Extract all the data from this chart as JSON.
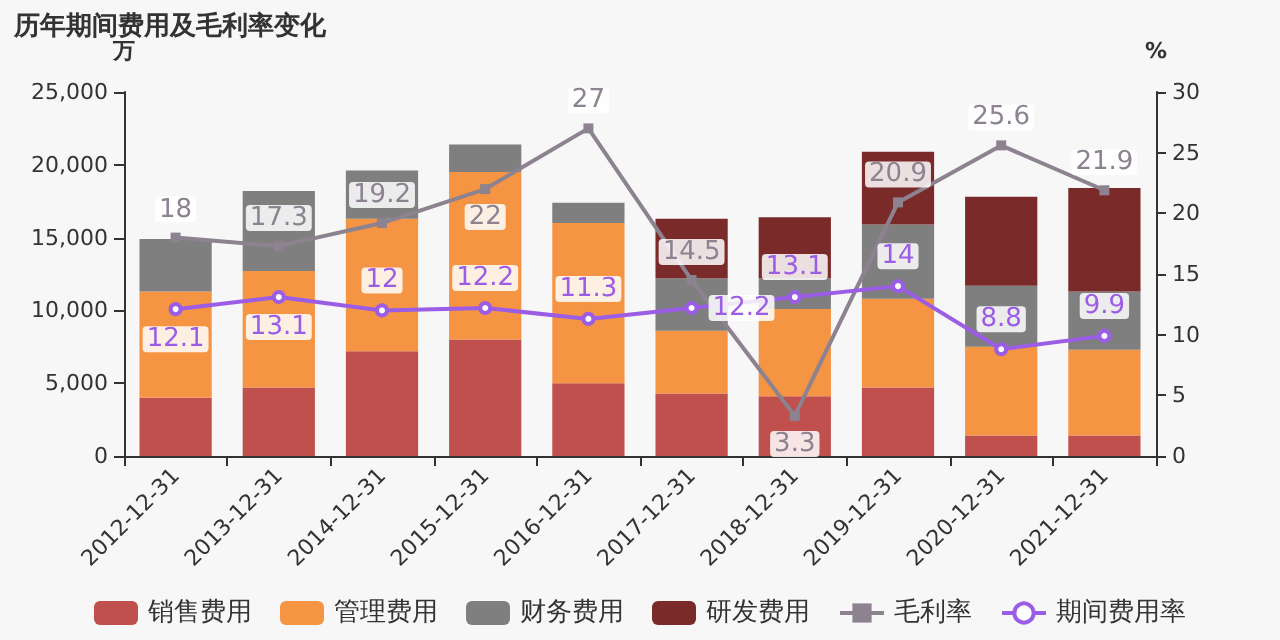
{
  "chart_data": {
    "type": "bar",
    "title": "历年期间费用及毛利率变化",
    "ylabel": "万",
    "y2label": "%",
    "categories": [
      "2012-12-31",
      "2013-12-31",
      "2014-12-31",
      "2015-12-31",
      "2016-12-31",
      "2017-12-31",
      "2018-12-31",
      "2019-12-31",
      "2020-12-31",
      "2021-12-31"
    ],
    "stacked": true,
    "legend": "bottom",
    "grid": false,
    "ylim": [
      0,
      25000
    ],
    "yticks": [
      0,
      {
        "value": 5000,
        "label": "5,000"
      },
      {
        "value": 10000,
        "label": "10,000"
      },
      {
        "value": 15000,
        "label": "15,000"
      },
      {
        "value": 20000,
        "label": "20,000"
      },
      {
        "value": 25000,
        "label": "25,000"
      }
    ],
    "y2lim": [
      0,
      30
    ],
    "y2ticks": [
      0,
      5,
      10,
      15,
      20,
      25,
      30
    ],
    "series": [
      {
        "name": "销售费用",
        "color": "#c0504d",
        "values": [
          4000,
          4700,
          7200,
          8000,
          5000,
          4300,
          4100,
          4700,
          1400,
          1400
        ]
      },
      {
        "name": "管理费用",
        "color": "#f59443",
        "values": [
          7300,
          8000,
          9100,
          11500,
          11000,
          4300,
          6000,
          6100,
          6100,
          5900
        ]
      },
      {
        "name": "财务费用",
        "color": "#7f7f7f",
        "values": [
          3600,
          5500,
          3300,
          1900,
          1400,
          3600,
          2100,
          5100,
          4200,
          4000
        ]
      },
      {
        "name": "研发费用",
        "color": "#7b2a2a",
        "values": [
          0,
          0,
          0,
          0,
          0,
          4100,
          4200,
          5000,
          6100,
          7100
        ]
      },
      {
        "name": "毛利率",
        "type": "line",
        "axis": "y2",
        "color": "#8c8290",
        "marker": "square",
        "data_labels": true,
        "values": [
          18,
          17.3,
          19.2,
          22,
          27,
          14.5,
          3.3,
          20.9,
          25.6,
          21.9
        ]
      },
      {
        "name": "期间费用率",
        "type": "line",
        "axis": "y2",
        "color": "#9b5de5",
        "marker": "circle",
        "data_labels": true,
        "values": [
          12.1,
          13.1,
          12,
          12.2,
          11.3,
          12.2,
          13.1,
          14,
          8.8,
          9.9
        ]
      }
    ]
  }
}
